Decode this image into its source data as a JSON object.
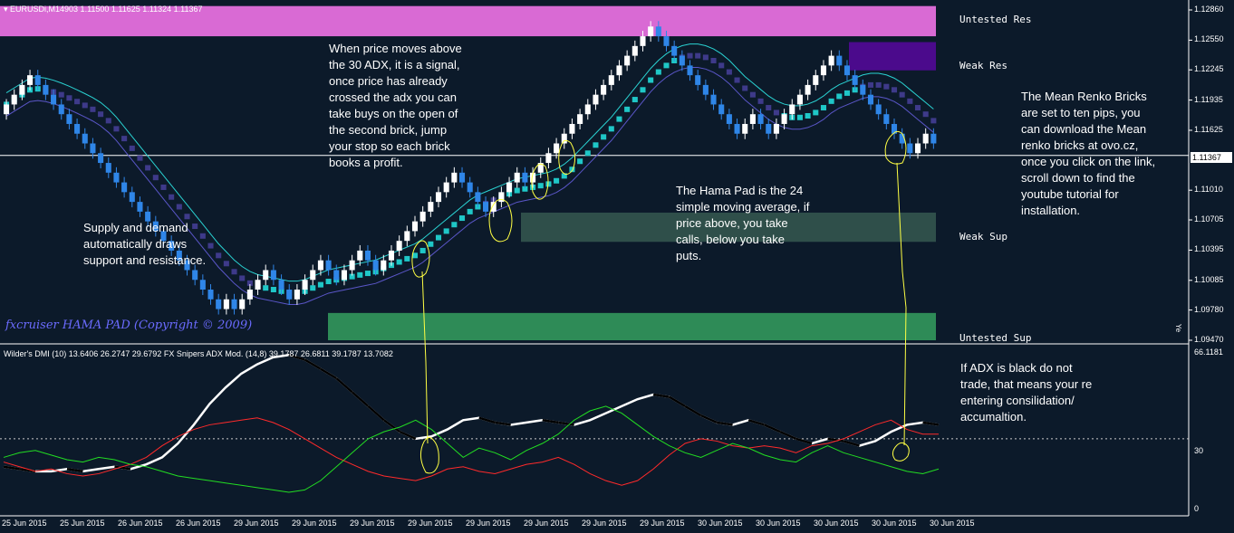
{
  "header": {
    "symbol_line": "EURUSDi,M14903  1.11500 1.11625 1.11324 1.11367",
    "indicator_line": "Wilder's DMI (10) 13.6406 26.2747 29.6792  FX Snipers ADX Mod. (14,8) 39.1787 26.6811 39.1787 13.7082",
    "watermark": "fxcruiser HAMA PAD (Copyright © 2009)",
    "current_price": "1.11367",
    "indicator_max": "66.1181",
    "side_marker": "Ye"
  },
  "zones": [
    {
      "label": "Untested Res",
      "color": "#d96ad4"
    },
    {
      "label": "Weak Res",
      "color": "#4b0a8c"
    },
    {
      "label": "Weak Sup",
      "color": "#2f4f4a"
    },
    {
      "label": "Untested Sup",
      "color": "#2e8b57"
    }
  ],
  "notes": {
    "adx": "When price moves above the 30 ADX, it is a signal, once price has already crossed the adx you can take buys on the open of the second brick, jump your stop so each brick books a profit.",
    "hama": "The Hama Pad is the 24 simple moving average, if price above, you take calls, below you take puts.",
    "renko": "The Mean Renko Bricks are set to ten pips, you can download the Mean renko bricks at ovo.cz, once you click on the link, scroll down to find the youtube tutorial for installation.",
    "supply": "Supply and demand automatically draws support and resistance.",
    "black_adx": "If ADX is black do not trade, that means your re entering consilidation/ accumaltion."
  },
  "chart_data": [
    {
      "type": "renko-price",
      "title": "EURUSDi,M14903",
      "y_ticks": [
        "1.12860",
        "1.12550",
        "1.12245",
        "1.11935",
        "1.11625",
        "1.11010",
        "1.10705",
        "1.10395",
        "1.10085",
        "1.09780",
        "1.09470"
      ],
      "ylim": [
        1.0947,
        1.1286
      ],
      "x_ticks": [
        "25 Jun 2015",
        "25 Jun 2015",
        "26 Jun 2015",
        "26 Jun 2015",
        "29 Jun 2015",
        "29 Jun 2015",
        "29 Jun 2015",
        "29 Jun 2015",
        "29 Jun 2015",
        "29 Jun 2015",
        "29 Jun 2015",
        "29 Jun 2015",
        "30 Jun 2015",
        "30 Jun 2015",
        "30 Jun 2015",
        "30 Jun 2015",
        "30 Jun 2015"
      ],
      "current_price": 1.11367,
      "zones_price": [
        {
          "label": "Untested Res",
          "from": 1.1259,
          "to": 1.129
        },
        {
          "label": "Weak Res",
          "from": 1.1224,
          "to": 1.1253
        },
        {
          "label": "Weak Sup",
          "from": 1.1048,
          "to": 1.1078
        },
        {
          "label": "Untested Sup",
          "from": 1.0947,
          "to": 1.0975
        }
      ],
      "brick_closes": [
        1.1189,
        1.1199,
        1.1209,
        1.1219,
        1.1209,
        1.1199,
        1.1189,
        1.1179,
        1.1169,
        1.1159,
        1.1149,
        1.1139,
        1.1129,
        1.1119,
        1.1109,
        1.1099,
        1.1089,
        1.1079,
        1.1069,
        1.1059,
        1.1049,
        1.1039,
        1.1029,
        1.1019,
        1.1009,
        1.0999,
        1.0989,
        1.0979,
        1.0989,
        1.0979,
        1.0989,
        1.0999,
        1.1009,
        1.1019,
        1.1009,
        1.0999,
        1.0989,
        1.0999,
        1.1009,
        1.1019,
        1.1029,
        1.1019,
        1.1009,
        1.1019,
        1.1029,
        1.1039,
        1.1029,
        1.1019,
        1.1029,
        1.1039,
        1.1049,
        1.1059,
        1.1069,
        1.1079,
        1.1089,
        1.1099,
        1.1109,
        1.1119,
        1.1109,
        1.1099,
        1.1089,
        1.1079,
        1.1089,
        1.1099,
        1.1109,
        1.1119,
        1.1109,
        1.1119,
        1.1129,
        1.1139,
        1.1149,
        1.1159,
        1.1169,
        1.1179,
        1.1189,
        1.1199,
        1.1209,
        1.1219,
        1.1229,
        1.1239,
        1.1249,
        1.1259,
        1.1269,
        1.1259,
        1.1249,
        1.1239,
        1.1229,
        1.1219,
        1.1209,
        1.1199,
        1.1189,
        1.1179,
        1.1169,
        1.1159,
        1.1169,
        1.1179,
        1.1169,
        1.1159,
        1.1169,
        1.1179,
        1.1189,
        1.1199,
        1.1209,
        1.1219,
        1.1229,
        1.1239,
        1.1229,
        1.1219,
        1.1209,
        1.1199,
        1.1189,
        1.1179,
        1.1169,
        1.1159,
        1.1149,
        1.1139,
        1.1149,
        1.1159,
        1.1149
      ]
    },
    {
      "type": "line",
      "title": "Wilder's DMI (10) / FX Snipers ADX Mod. (14,8)",
      "ylim": [
        0,
        66.1181
      ],
      "y_ticks": [
        "66.1181",
        "30",
        "0"
      ],
      "level": 30,
      "series": [
        {
          "color": "#ffffff",
          "values": [
            18,
            17,
            16,
            16,
            17,
            16,
            17,
            18,
            17,
            19,
            22,
            28,
            36,
            45,
            52,
            58,
            62,
            65,
            66,
            64,
            60,
            56,
            50,
            44,
            38,
            33,
            30,
            31,
            34,
            38,
            39,
            37,
            36,
            37,
            38,
            37,
            36,
            38,
            41,
            44,
            47,
            49,
            48,
            44,
            40,
            37,
            36,
            38,
            36,
            33,
            30,
            28,
            30,
            29,
            27,
            29,
            33,
            36,
            37,
            36
          ]
        },
        {
          "color": "#ff2a2a",
          "values": [
            20,
            18,
            16,
            17,
            15,
            14,
            15,
            17,
            19,
            22,
            27,
            31,
            34,
            36,
            37,
            38,
            39,
            37,
            34,
            30,
            26,
            22,
            19,
            16,
            14,
            13,
            12,
            14,
            17,
            18,
            16,
            15,
            17,
            19,
            20,
            22,
            19,
            15,
            12,
            10,
            12,
            17,
            23,
            28,
            30,
            29,
            27,
            26,
            27,
            26,
            24,
            27,
            28,
            30,
            33,
            36,
            38,
            34,
            32,
            32
          ]
        },
        {
          "color": "#22dd22",
          "values": [
            22,
            24,
            25,
            23,
            21,
            20,
            22,
            21,
            19,
            18,
            16,
            14,
            13,
            12,
            11,
            10,
            9,
            8,
            7,
            8,
            12,
            18,
            24,
            30,
            33,
            35,
            38,
            34,
            28,
            22,
            26,
            24,
            21,
            25,
            28,
            32,
            38,
            42,
            44,
            41,
            36,
            31,
            27,
            24,
            22,
            25,
            28,
            26,
            23,
            21,
            20,
            24,
            27,
            24,
            22,
            20,
            18,
            16,
            15,
            17
          ]
        }
      ]
    }
  ]
}
